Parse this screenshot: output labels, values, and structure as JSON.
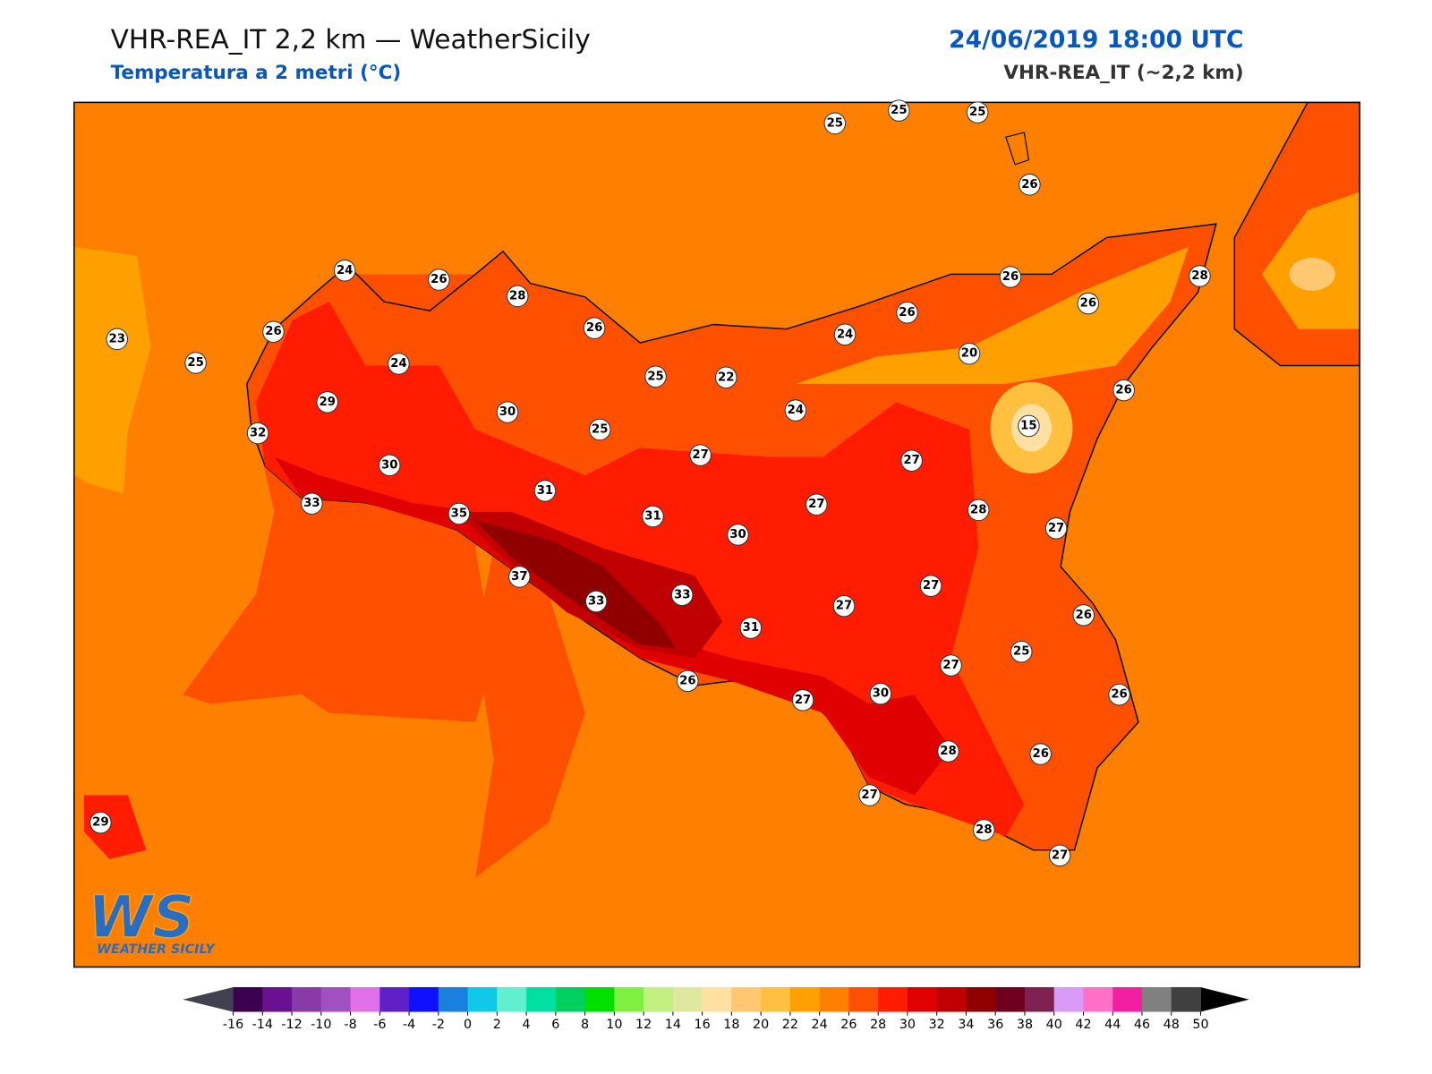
{
  "header": {
    "title": "VHR-REA_IT 2,2 km — WeatherSicily",
    "subtitle": "Temperatura a 2 metri (°C)",
    "datetime": "24/06/2019 18:00 UTC",
    "model": "VHR-REA_IT (~2,2 km)"
  },
  "stations": [
    25,
    25,
    25,
    26,
    24,
    26,
    28,
    26,
    23,
    25,
    24,
    26,
    29,
    30,
    32,
    30,
    33,
    35,
    31,
    25,
    25,
    22,
    24,
    24,
    26,
    26,
    26,
    28,
    20,
    26,
    15,
    27,
    27,
    31,
    30,
    27,
    28,
    27,
    37,
    33,
    33,
    31,
    27,
    27,
    26,
    25,
    27,
    26,
    27,
    30,
    26,
    28,
    26,
    27,
    28,
    27,
    29
  ],
  "colorbar": {
    "ticks": [
      -16,
      -14,
      -12,
      -10,
      -8,
      -6,
      -4,
      -2,
      0,
      2,
      4,
      6,
      8,
      10,
      12,
      14,
      16,
      18,
      20,
      22,
      24,
      26,
      28,
      30,
      32,
      34,
      36,
      38,
      40,
      42,
      44,
      46,
      48,
      50
    ],
    "colors": [
      "#3b0050",
      "#6a1090",
      "#8a3aa8",
      "#a050c0",
      "#e070e8",
      "#6020c8",
      "#1010ff",
      "#1a80e0",
      "#10c8e8",
      "#60f0d0",
      "#00e0a0",
      "#00d060",
      "#00e000",
      "#80f040",
      "#c0f080",
      "#e0e8a0",
      "#ffe0a0",
      "#ffc870",
      "#ffc040",
      "#ffa000",
      "#ff8000",
      "#ff5000",
      "#ff1c00",
      "#e00000",
      "#c00000",
      "#900000",
      "#700020",
      "#802050",
      "#d89cf8",
      "#ff70c8",
      "#f020a0",
      "#808080",
      "#404040"
    ],
    "under": "#404050",
    "over": "#000000"
  },
  "logo": {
    "mark": "WS",
    "name": "WEATHER SICILY"
  }
}
